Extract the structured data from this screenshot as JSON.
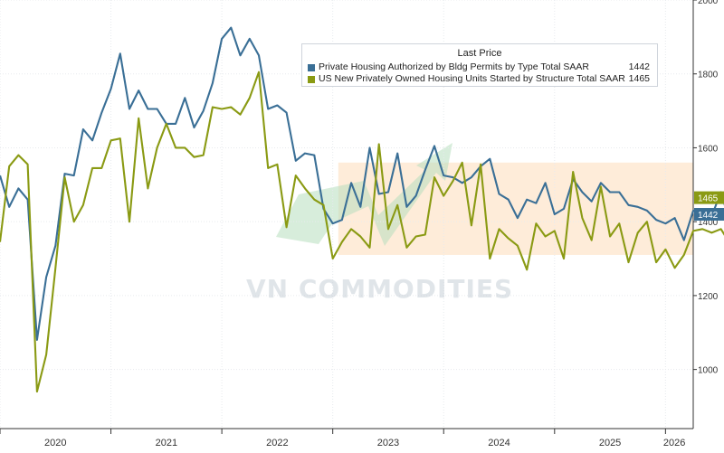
{
  "chart_data": {
    "type": "line",
    "title": "",
    "xlabel": "",
    "ylabel": "",
    "ylim": [
      840,
      2000
    ],
    "xlim": [
      2020.0,
      2026.25
    ],
    "y_ticks": [
      1000,
      1200,
      1400,
      1600,
      1800,
      2000
    ],
    "x_ticks": [
      {
        "label": "2020",
        "pos": 2020.5
      },
      {
        "label": "2021",
        "pos": 2021.5
      },
      {
        "label": "2022",
        "pos": 2022.5
      },
      {
        "label": "2023",
        "pos": 2023.5
      },
      {
        "label": "2024",
        "pos": 2024.5
      },
      {
        "label": "2025",
        "pos": 2025.5
      },
      {
        "label": "2026",
        "pos": 2026.08
      }
    ],
    "x_grid": [
      2020.0,
      2021.0,
      2022.0,
      2023.0,
      2024.0,
      2025.0,
      2026.0
    ],
    "grid": true,
    "legend_position": "top-right",
    "legend_title": "Last Price",
    "series": [
      {
        "name": "Private Housing Authorized by Bldg Permits by Type Total SAAR",
        "last_value": "1442",
        "color": "#3a6f96",
        "x_start": 2020.0,
        "x_step": 0.0833333,
        "values": [
          1525,
          1440,
          1490,
          1460,
          1080,
          1250,
          1335,
          1530,
          1525,
          1650,
          1620,
          1695,
          1760,
          1855,
          1705,
          1755,
          1705,
          1705,
          1665,
          1665,
          1735,
          1655,
          1700,
          1775,
          1895,
          1925,
          1850,
          1895,
          1850,
          1705,
          1715,
          1695,
          1565,
          1585,
          1580,
          1435,
          1395,
          1405,
          1505,
          1440,
          1600,
          1475,
          1480,
          1585,
          1440,
          1470,
          1540,
          1605,
          1525,
          1520,
          1505,
          1520,
          1550,
          1570,
          1475,
          1460,
          1410,
          1460,
          1450,
          1505,
          1420,
          1435,
          1515,
          1480,
          1455,
          1505,
          1480,
          1480,
          1445,
          1440,
          1430,
          1405,
          1395,
          1410,
          1350,
          1430,
          1420,
          1415,
          1480,
          1395,
          1530,
          1365,
          1442
        ]
      },
      {
        "name": "US New Privately Owned Housing Units Started by Structure Total SAAR",
        "last_value": "1465",
        "color": "#8a9a13",
        "x_start": 2020.0,
        "x_step": 0.0833333,
        "values": [
          1345,
          1550,
          1580,
          1555,
          940,
          1040,
          1275,
          1520,
          1400,
          1445,
          1545,
          1545,
          1620,
          1625,
          1400,
          1680,
          1490,
          1600,
          1665,
          1600,
          1600,
          1575,
          1580,
          1710,
          1705,
          1710,
          1690,
          1735,
          1805,
          1545,
          1555,
          1385,
          1525,
          1490,
          1460,
          1445,
          1300,
          1345,
          1380,
          1360,
          1330,
          1610,
          1380,
          1445,
          1330,
          1360,
          1365,
          1520,
          1470,
          1510,
          1560,
          1390,
          1555,
          1300,
          1380,
          1355,
          1335,
          1270,
          1395,
          1360,
          1375,
          1300,
          1535,
          1410,
          1350,
          1495,
          1360,
          1395,
          1290,
          1370,
          1400,
          1290,
          1325,
          1275,
          1310,
          1375,
          1380,
          1370,
          1380,
          1340,
          1515,
          1485,
          1465
        ]
      }
    ],
    "right_labels": [
      "1465",
      "1442"
    ],
    "shaded_band": {
      "x": [
        2023.05,
        2026.25
      ],
      "y": [
        1310,
        1560
      ],
      "color": "#fde6cc"
    }
  },
  "colors": {
    "background": "#ffffff",
    "grid": "#e7eaee",
    "band": "#fde6cc",
    "series1": "#3a6f96",
    "series2": "#8a9a13",
    "watermark": "#c8d0d8",
    "arrow": "#b7dfbd"
  },
  "watermark": {
    "text": "VN COMMODITIES"
  }
}
